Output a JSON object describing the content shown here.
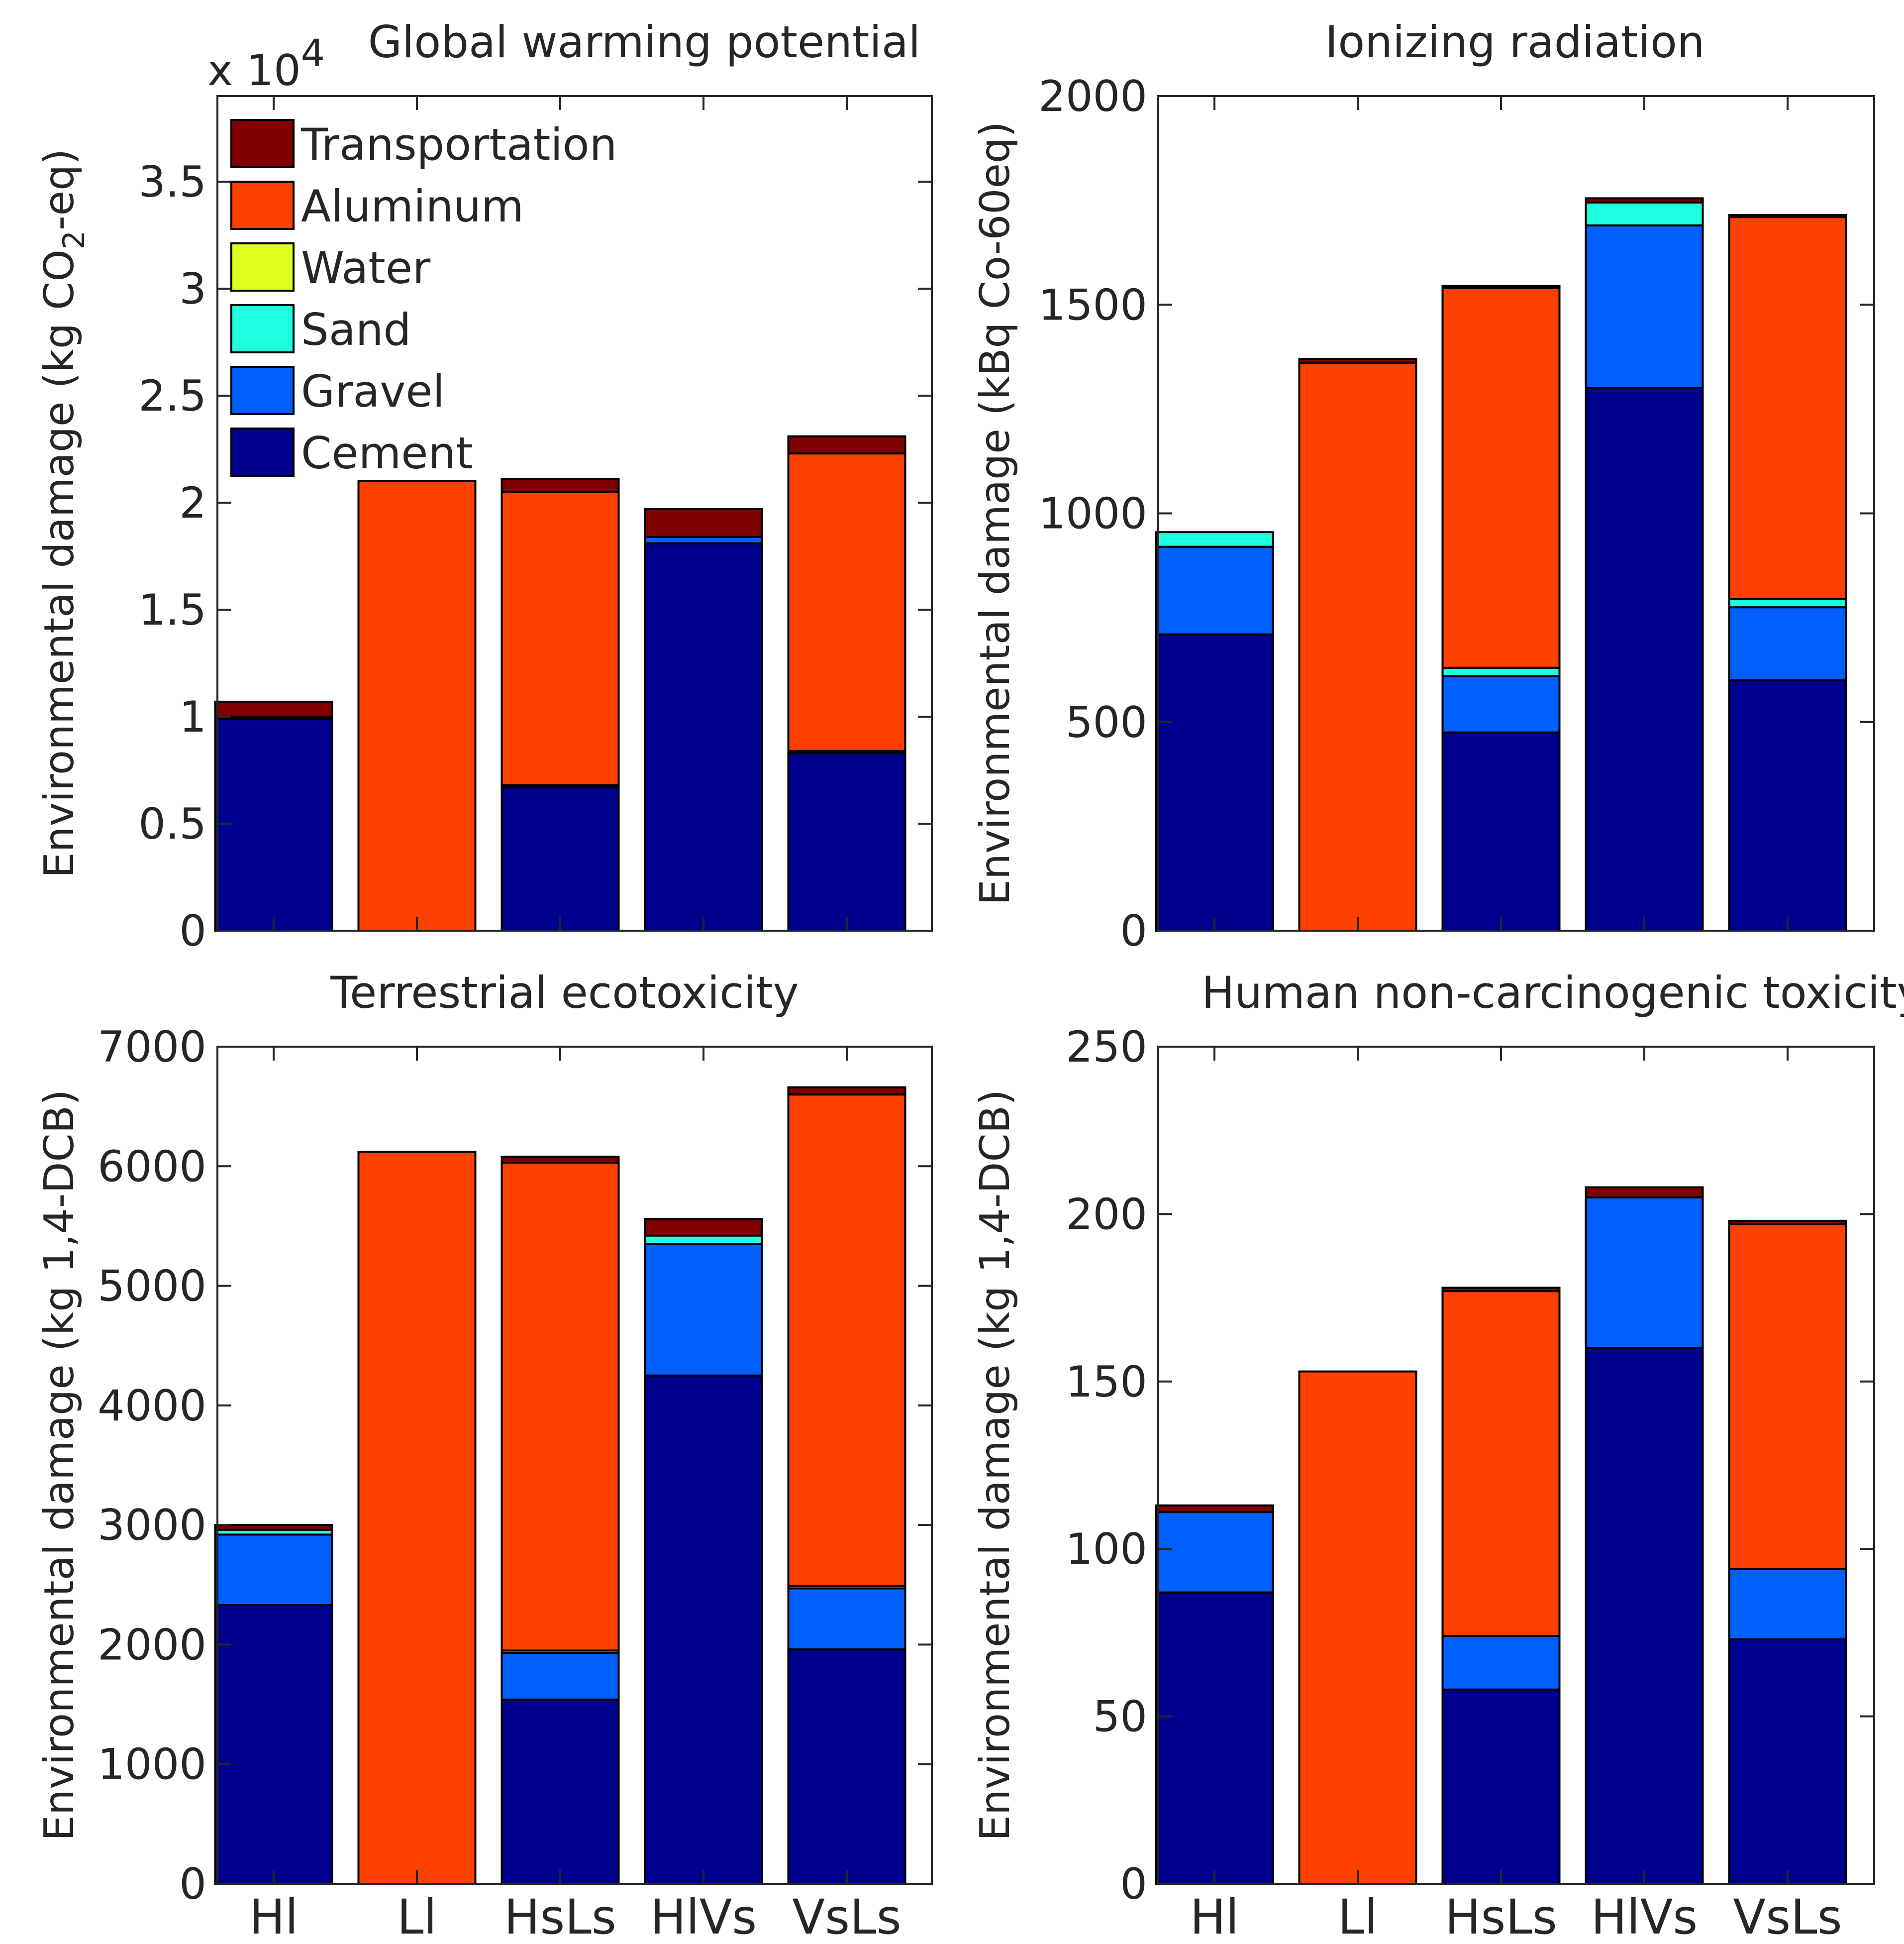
{
  "chart_data": [
    {
      "type": "bar",
      "stacked": true,
      "title": "Global warming potential",
      "ylabel": "Environmental damage (kg CO2-eq)",
      "ylabel_main": "Environmental damage (kg CO",
      "ylabel_sub": "2",
      "ylabel_tail": "-eq)",
      "ylim": [
        0,
        39000
      ],
      "yticks": [
        0,
        5000,
        10000,
        15000,
        20000,
        25000,
        30000,
        35000
      ],
      "ytick_labels": [
        "0",
        "0.5",
        "1",
        "1.5",
        "2",
        "2.5",
        "3",
        "3.5"
      ],
      "y_multiplier": "x 10",
      "y_multiplier_exp": "4",
      "categories": [
        "Hl",
        "Ll",
        "HsLs",
        "HlVs",
        "VsLs"
      ],
      "show_xticklabels": false,
      "legend": true,
      "series": [
        {
          "name": "Cement",
          "values": [
            9900,
            0,
            6700,
            18100,
            8300
          ]
        },
        {
          "name": "Gravel",
          "values": [
            100,
            0,
            100,
            300,
            100
          ]
        },
        {
          "name": "Sand",
          "values": [
            0,
            0,
            0,
            0,
            0
          ]
        },
        {
          "name": "Water",
          "values": [
            0,
            0,
            0,
            0,
            0
          ]
        },
        {
          "name": "Aluminum",
          "values": [
            0,
            21000,
            13700,
            0,
            13900
          ]
        },
        {
          "name": "Transportation",
          "values": [
            700,
            0,
            600,
            1300,
            800
          ]
        }
      ]
    },
    {
      "type": "bar",
      "stacked": true,
      "title": "Ionizing radiation",
      "ylabel": "Environmental damage (kBq Co-60eq)",
      "ylim": [
        0,
        2000
      ],
      "yticks": [
        0,
        500,
        1000,
        1500,
        2000
      ],
      "ytick_labels": [
        "0",
        "500",
        "1000",
        "1500",
        "2000"
      ],
      "categories": [
        "Hl",
        "Ll",
        "HsLs",
        "HlVs",
        "VsLs"
      ],
      "show_xticklabels": false,
      "legend": false,
      "series": [
        {
          "name": "Cement",
          "values": [
            710,
            0,
            475,
            1300,
            600
          ]
        },
        {
          "name": "Gravel",
          "values": [
            210,
            0,
            135,
            390,
            175
          ]
        },
        {
          "name": "Sand",
          "values": [
            35,
            0,
            20,
            55,
            20
          ]
        },
        {
          "name": "Water",
          "values": [
            0,
            0,
            0,
            0,
            0
          ]
        },
        {
          "name": "Aluminum",
          "values": [
            0,
            1360,
            910,
            0,
            915
          ]
        },
        {
          "name": "Transportation",
          "values": [
            0,
            10,
            5,
            10,
            5
          ]
        }
      ]
    },
    {
      "type": "bar",
      "stacked": true,
      "title": "Terrestrial ecotoxicity",
      "ylabel": "Environmental damage (kg 1,4-DCB)",
      "ylim": [
        0,
        7000
      ],
      "yticks": [
        0,
        1000,
        2000,
        3000,
        4000,
        5000,
        6000,
        7000
      ],
      "ytick_labels": [
        "0",
        "1000",
        "2000",
        "3000",
        "4000",
        "5000",
        "6000",
        "7000"
      ],
      "categories": [
        "Hl",
        "Ll",
        "HsLs",
        "HlVs",
        "VsLs"
      ],
      "show_xticklabels": true,
      "legend": false,
      "series": [
        {
          "name": "Cement",
          "values": [
            2330,
            0,
            1540,
            4250,
            1960
          ]
        },
        {
          "name": "Gravel",
          "values": [
            590,
            0,
            390,
            1100,
            510
          ]
        },
        {
          "name": "Sand",
          "values": [
            40,
            0,
            20,
            70,
            20
          ]
        },
        {
          "name": "Water",
          "values": [
            0,
            0,
            0,
            0,
            0
          ]
        },
        {
          "name": "Aluminum",
          "values": [
            0,
            6120,
            4080,
            0,
            4110
          ]
        },
        {
          "name": "Transportation",
          "values": [
            40,
            0,
            50,
            140,
            60
          ]
        }
      ]
    },
    {
      "type": "bar",
      "stacked": true,
      "title": "Human non-carcinogenic toxicity",
      "ylabel": "Environmental damage (kg 1,4-DCB)",
      "ylim": [
        0,
        250
      ],
      "yticks": [
        0,
        50,
        100,
        150,
        200,
        250
      ],
      "ytick_labels": [
        "0",
        "50",
        "100",
        "150",
        "200",
        "250"
      ],
      "categories": [
        "Hl",
        "Ll",
        "HsLs",
        "HlVs",
        "VsLs"
      ],
      "show_xticklabels": true,
      "legend": false,
      "series": [
        {
          "name": "Cement",
          "values": [
            87,
            0,
            58,
            160,
            73
          ]
        },
        {
          "name": "Gravel",
          "values": [
            24,
            0,
            16,
            45,
            21
          ]
        },
        {
          "name": "Sand",
          "values": [
            0,
            0,
            0,
            0,
            0
          ]
        },
        {
          "name": "Water",
          "values": [
            0,
            0,
            0,
            0,
            0
          ]
        },
        {
          "name": "Aluminum",
          "values": [
            0,
            153,
            103,
            0,
            103
          ]
        },
        {
          "name": "Transportation",
          "values": [
            2,
            0,
            1,
            3,
            1
          ]
        }
      ]
    }
  ],
  "legend_order": [
    "Transportation",
    "Aluminum",
    "Water",
    "Sand",
    "Gravel",
    "Cement"
  ],
  "colors": {
    "Cement": "#00008f",
    "Gravel": "#0060ff",
    "Sand": "#1fffdf",
    "Water": "#dfff1f",
    "Aluminum": "#ff4000",
    "Transportation": "#800000"
  }
}
